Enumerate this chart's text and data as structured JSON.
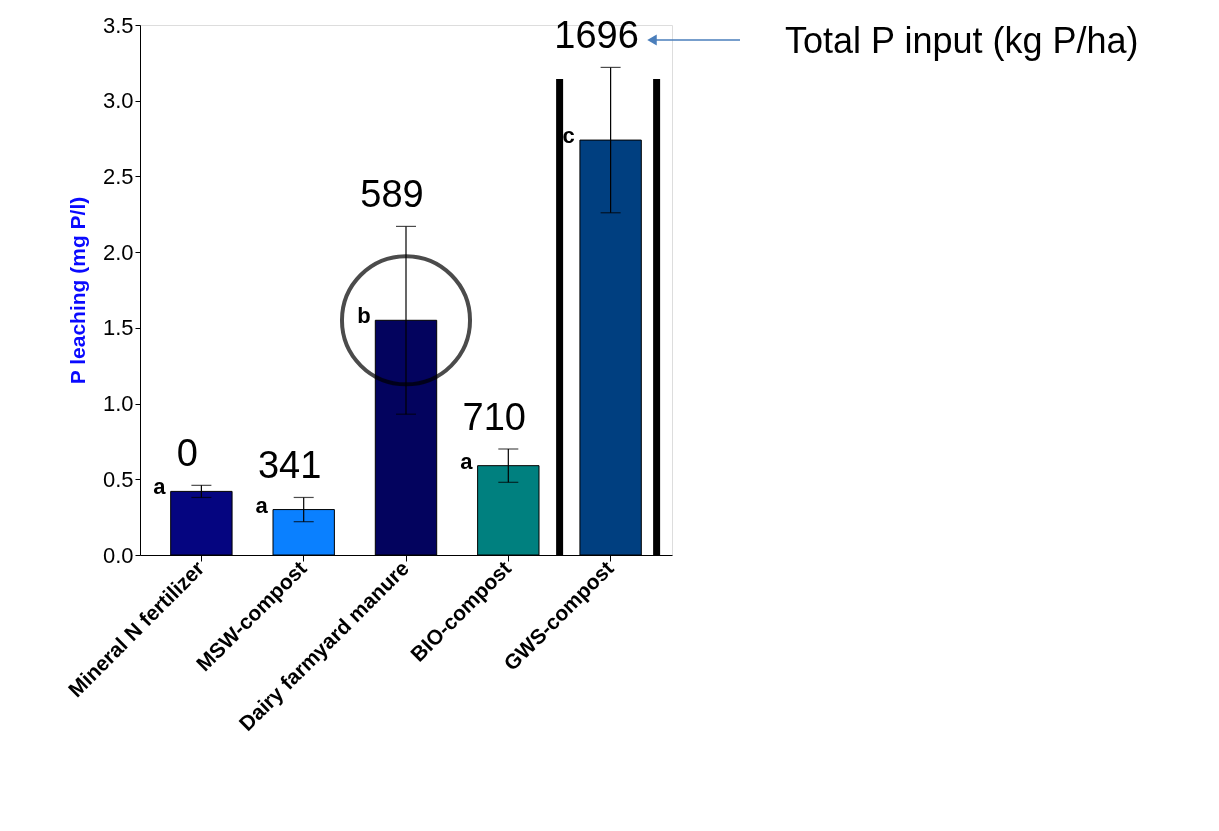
{
  "chart_data": {
    "type": "bar",
    "ylabel": "P leaching (mg P/l)",
    "categories": [
      "Mineral N fertilizer",
      "MSW-compost",
      "Dairy farmyard manure",
      "BIO-compost",
      "GWS-compost"
    ],
    "values": [
      0.42,
      0.3,
      1.55,
      0.59,
      2.74
    ],
    "errors": [
      0.04,
      0.08,
      0.62,
      0.11,
      0.48
    ],
    "colors": [
      "#050580",
      "#0a80ff",
      "#03035e",
      "#00807f",
      "#003f80"
    ],
    "ylim": [
      0,
      3.5
    ],
    "yticks": [
      {
        "value": 0,
        "label": "0.0"
      },
      {
        "value": 0.5,
        "label": "0.5"
      },
      {
        "value": 1,
        "label": "1.0"
      },
      {
        "value": 1.5,
        "label": "1.5"
      },
      {
        "value": 2,
        "label": "2.0"
      },
      {
        "value": 2.5,
        "label": "2.5"
      },
      {
        "value": 3,
        "label": "3.0"
      },
      {
        "value": 3.5,
        "label": "3.5"
      }
    ],
    "grid": false,
    "annotations": [
      "0",
      "341",
      "589",
      "710",
      "1696",
      {
        "text": "a",
        "x": "Mineral N fertilizer",
        "y": 0.42
      },
      {
        "text": "a",
        "x": "MSW-compost",
        "y": 0.3
      },
      {
        "text": "b",
        "x": "Dairy farmyard manure",
        "y": 1.55
      },
      {
        "text": "a",
        "x": "BIO-compost",
        "y": 0.59
      },
      {
        "text": "c",
        "x": "GWS-compost",
        "y": 2.74
      },
      "Total P input (kg P/ha)"
    ]
  }
}
